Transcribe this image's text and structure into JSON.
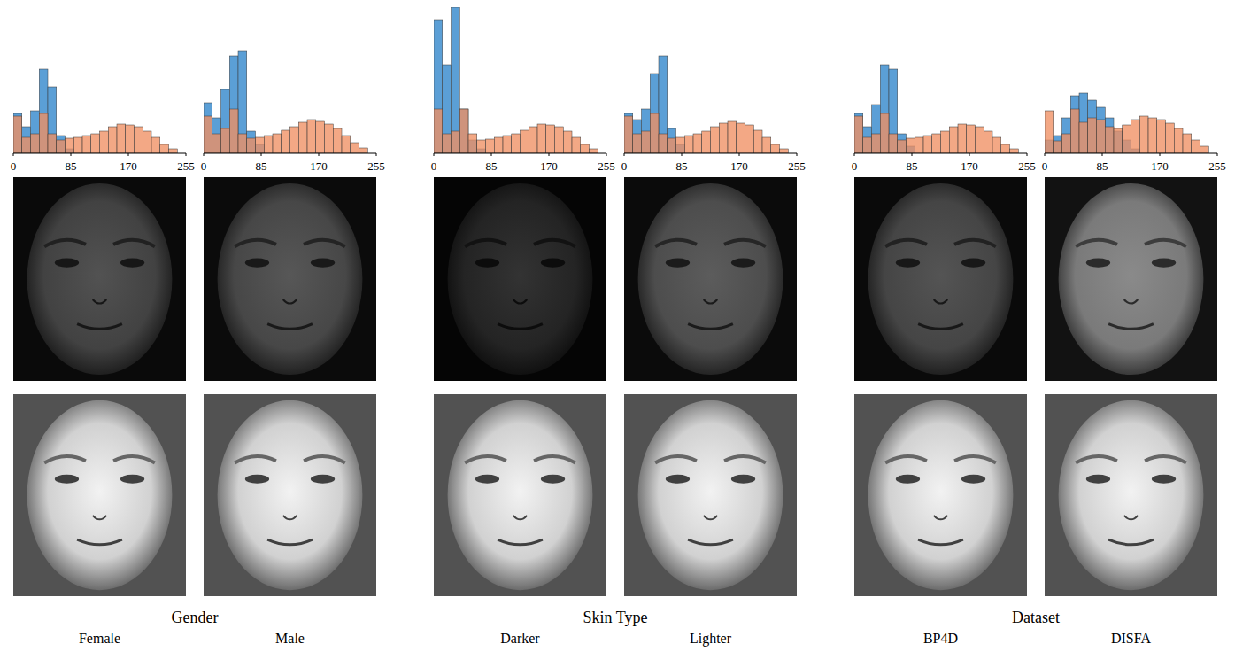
{
  "chart_data": [
    {
      "type": "histogram",
      "title": "Female",
      "bins": [
        0,
        12.75,
        25.5,
        38.25,
        51,
        63.75,
        76.5,
        89.25,
        102,
        114.75,
        127.5,
        140.25,
        153,
        165.75,
        178.5,
        191.25,
        204,
        216.75,
        229.5,
        242.25,
        255
      ],
      "xlim": [
        0,
        255
      ],
      "xticks": [
        0,
        85,
        170,
        255
      ],
      "ylim": [
        0,
        165
      ],
      "tick_labels": "x",
      "series": [
        {
          "color": "#5b9fd6",
          "values": [
            45,
            30,
            48,
            95,
            75,
            20,
            5,
            0,
            0,
            0,
            0,
            0,
            0,
            0,
            0,
            0,
            0,
            0,
            0,
            0
          ]
        },
        {
          "color": "#ef9063",
          "values": [
            42,
            18,
            22,
            45,
            22,
            15,
            17,
            18,
            20,
            22,
            25,
            30,
            33,
            32,
            30,
            25,
            18,
            10,
            5,
            0
          ]
        }
      ]
    },
    {
      "type": "histogram",
      "title": "Male",
      "bins": [
        0,
        12.75,
        25.5,
        38.25,
        51,
        63.75,
        76.5,
        89.25,
        102,
        114.75,
        127.5,
        140.25,
        153,
        165.75,
        178.5,
        191.25,
        204,
        216.75,
        229.5,
        242.25,
        255
      ],
      "xlim": [
        0,
        255
      ],
      "xticks": [
        0,
        85,
        170,
        255
      ],
      "ylim": [
        0,
        165
      ],
      "tick_labels": "x",
      "series": [
        {
          "color": "#5b9fd6",
          "values": [
            57,
            40,
            72,
            110,
            115,
            25,
            10,
            0,
            0,
            0,
            0,
            0,
            0,
            0,
            0,
            0,
            0,
            0,
            0,
            0
          ]
        },
        {
          "color": "#ef9063",
          "values": [
            42,
            22,
            28,
            50,
            22,
            17,
            18,
            20,
            22,
            26,
            30,
            35,
            38,
            36,
            33,
            28,
            20,
            12,
            6,
            0
          ]
        }
      ]
    },
    {
      "type": "histogram",
      "title": "Darker",
      "bins": [
        0,
        12.75,
        25.5,
        38.25,
        51,
        63.75,
        76.5,
        89.25,
        102,
        114.75,
        127.5,
        140.25,
        153,
        165.75,
        178.5,
        191.25,
        204,
        216.75,
        229.5,
        242.25,
        255
      ],
      "xlim": [
        0,
        255
      ],
      "xticks": [
        0,
        85,
        170,
        255
      ],
      "ylim": [
        0,
        165
      ],
      "tick_labels": "x",
      "series": [
        {
          "color": "#5b9fd6",
          "values": [
            150,
            100,
            165,
            50,
            15,
            5,
            0,
            0,
            0,
            0,
            0,
            0,
            0,
            0,
            0,
            0,
            0,
            0,
            0,
            0
          ]
        },
        {
          "color": "#ef9063",
          "values": [
            50,
            22,
            25,
            50,
            22,
            15,
            16,
            18,
            20,
            22,
            26,
            30,
            33,
            32,
            30,
            25,
            18,
            10,
            5,
            0
          ]
        }
      ]
    },
    {
      "type": "histogram",
      "title": "Lighter",
      "bins": [
        0,
        12.75,
        25.5,
        38.25,
        51,
        63.75,
        76.5,
        89.25,
        102,
        114.75,
        127.5,
        140.25,
        153,
        165.75,
        178.5,
        191.25,
        204,
        216.75,
        229.5,
        242.25,
        255
      ],
      "xlim": [
        0,
        255
      ],
      "xticks": [
        0,
        85,
        170,
        255
      ],
      "ylim": [
        0,
        165
      ],
      "tick_labels": "x",
      "series": [
        {
          "color": "#5b9fd6",
          "values": [
            45,
            38,
            50,
            90,
            110,
            28,
            10,
            0,
            0,
            0,
            0,
            0,
            0,
            0,
            0,
            0,
            0,
            0,
            0,
            0
          ]
        },
        {
          "color": "#ef9063",
          "values": [
            42,
            22,
            25,
            45,
            22,
            17,
            18,
            20,
            22,
            25,
            30,
            34,
            36,
            34,
            32,
            26,
            18,
            10,
            5,
            0
          ]
        }
      ]
    },
    {
      "type": "histogram",
      "title": "BP4D",
      "bins": [
        0,
        12.75,
        25.5,
        38.25,
        51,
        63.75,
        76.5,
        89.25,
        102,
        114.75,
        127.5,
        140.25,
        153,
        165.75,
        178.5,
        191.25,
        204,
        216.75,
        229.5,
        242.25,
        255
      ],
      "xlim": [
        0,
        255
      ],
      "xticks": [
        0,
        85,
        170,
        255
      ],
      "ylim": [
        0,
        165
      ],
      "tick_labels": "x",
      "series": [
        {
          "color": "#5b9fd6",
          "values": [
            45,
            30,
            55,
            100,
            95,
            22,
            8,
            0,
            0,
            0,
            0,
            0,
            0,
            0,
            0,
            0,
            0,
            0,
            0,
            0
          ]
        },
        {
          "color": "#ef9063",
          "values": [
            42,
            18,
            22,
            45,
            22,
            15,
            17,
            18,
            20,
            22,
            25,
            30,
            33,
            32,
            30,
            25,
            18,
            10,
            5,
            0
          ]
        }
      ]
    },
    {
      "type": "histogram",
      "title": "DISFA",
      "bins": [
        0,
        12.75,
        25.5,
        38.25,
        51,
        63.75,
        76.5,
        89.25,
        102,
        114.75,
        127.5,
        140.25,
        153,
        165.75,
        178.5,
        191.25,
        204,
        216.75,
        229.5,
        242.25,
        255
      ],
      "xlim": [
        0,
        255
      ],
      "xticks": [
        0,
        85,
        170,
        255
      ],
      "ylim": [
        0,
        165
      ],
      "tick_labels": "x",
      "series": [
        {
          "color": "#5b9fd6",
          "values": [
            15,
            20,
            40,
            65,
            68,
            60,
            52,
            40,
            25,
            15,
            5,
            0,
            0,
            0,
            0,
            0,
            0,
            0,
            0,
            0
          ]
        },
        {
          "color": "#ef9063",
          "values": [
            48,
            14,
            22,
            50,
            35,
            40,
            38,
            30,
            28,
            32,
            38,
            42,
            40,
            38,
            34,
            28,
            22,
            15,
            8,
            0
          ]
        }
      ]
    }
  ],
  "group_labels": [
    "Gender",
    "Skin Type",
    "Dataset"
  ]
}
